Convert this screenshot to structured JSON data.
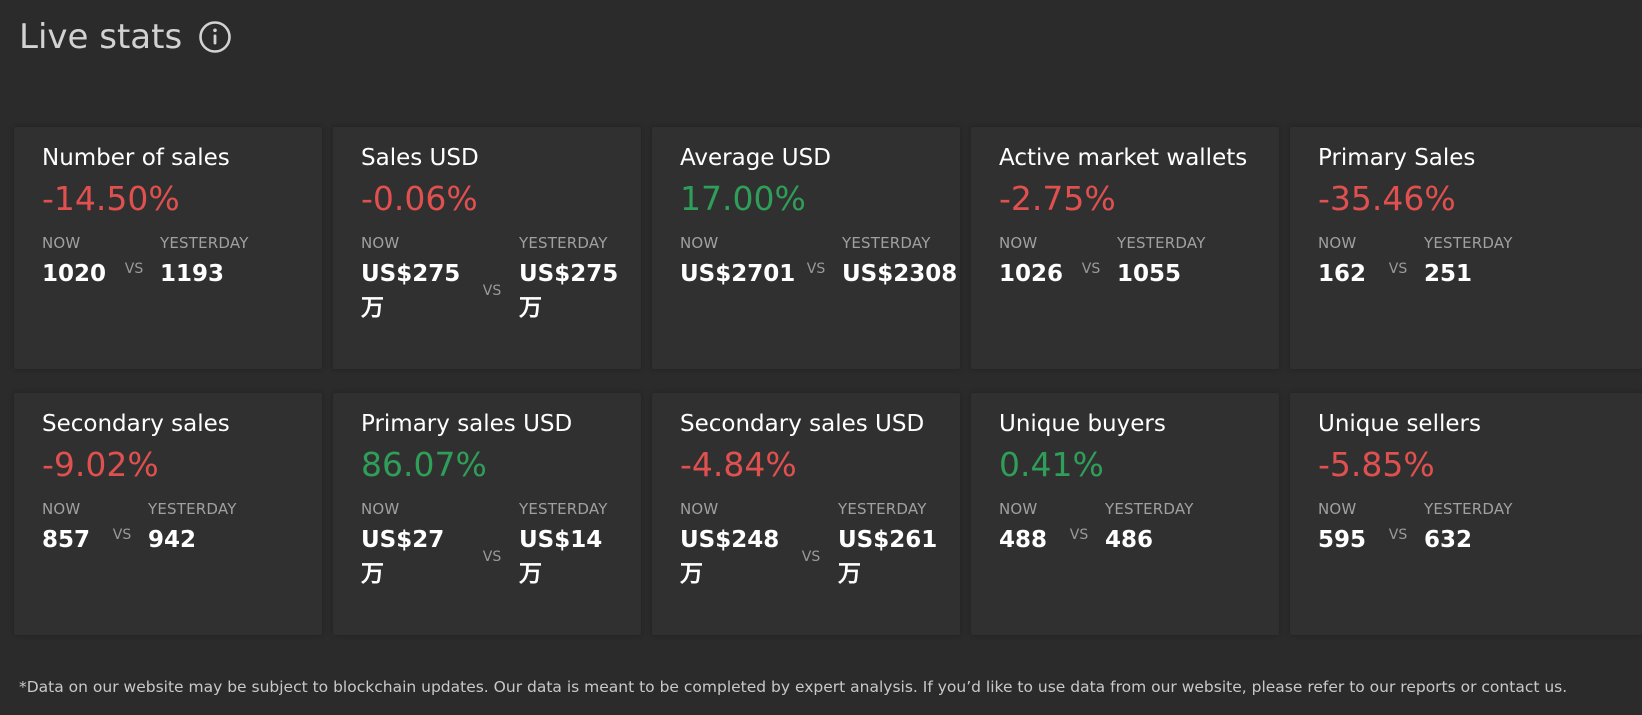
{
  "header": {
    "title": "Live stats",
    "info_icon": "info-circle-icon"
  },
  "labels": {
    "now": "NOW",
    "yesterday": "YESTERDAY",
    "vs": "VS"
  },
  "colors": {
    "negative": "#e0504f",
    "positive": "#2e9e58",
    "background": "#2b2b2b",
    "card": "#303030"
  },
  "cards": [
    {
      "title": "Number of sales",
      "change": "-14.50%",
      "trend": "neg",
      "now": "1020",
      "yesterday": "1193"
    },
    {
      "title": "Sales USD",
      "change": "-0.06%",
      "trend": "neg",
      "now": "US$275\n万",
      "yesterday": "US$275\n万"
    },
    {
      "title": "Average USD",
      "change": "17.00%",
      "trend": "pos",
      "now": "US$2701",
      "yesterday": "US$2308"
    },
    {
      "title": "Active market wallets",
      "change": "-2.75%",
      "trend": "neg",
      "now": "1026",
      "yesterday": "1055"
    },
    {
      "title": "Primary Sales",
      "change": "-35.46%",
      "trend": "neg",
      "now": "162",
      "yesterday": "251"
    },
    {
      "title": "Secondary sales",
      "change": "-9.02%",
      "trend": "neg",
      "now": "857",
      "yesterday": "942"
    },
    {
      "title": "Primary sales USD",
      "change": "86.07%",
      "trend": "pos",
      "now": "US$27\n万",
      "yesterday": "US$14\n万"
    },
    {
      "title": "Secondary sales USD",
      "change": "-4.84%",
      "trend": "neg",
      "now": "US$248\n万",
      "yesterday": "US$261\n万"
    },
    {
      "title": "Unique buyers",
      "change": "0.41%",
      "trend": "pos",
      "now": "488",
      "yesterday": "486"
    },
    {
      "title": "Unique sellers",
      "change": "-5.85%",
      "trend": "neg",
      "now": "595",
      "yesterday": "632"
    }
  ],
  "footnote": "*Data on our website may be subject to blockchain updates. Our data is meant to be completed by expert analysis. If you’d like to use data from our website, please refer to our reports or contact us."
}
